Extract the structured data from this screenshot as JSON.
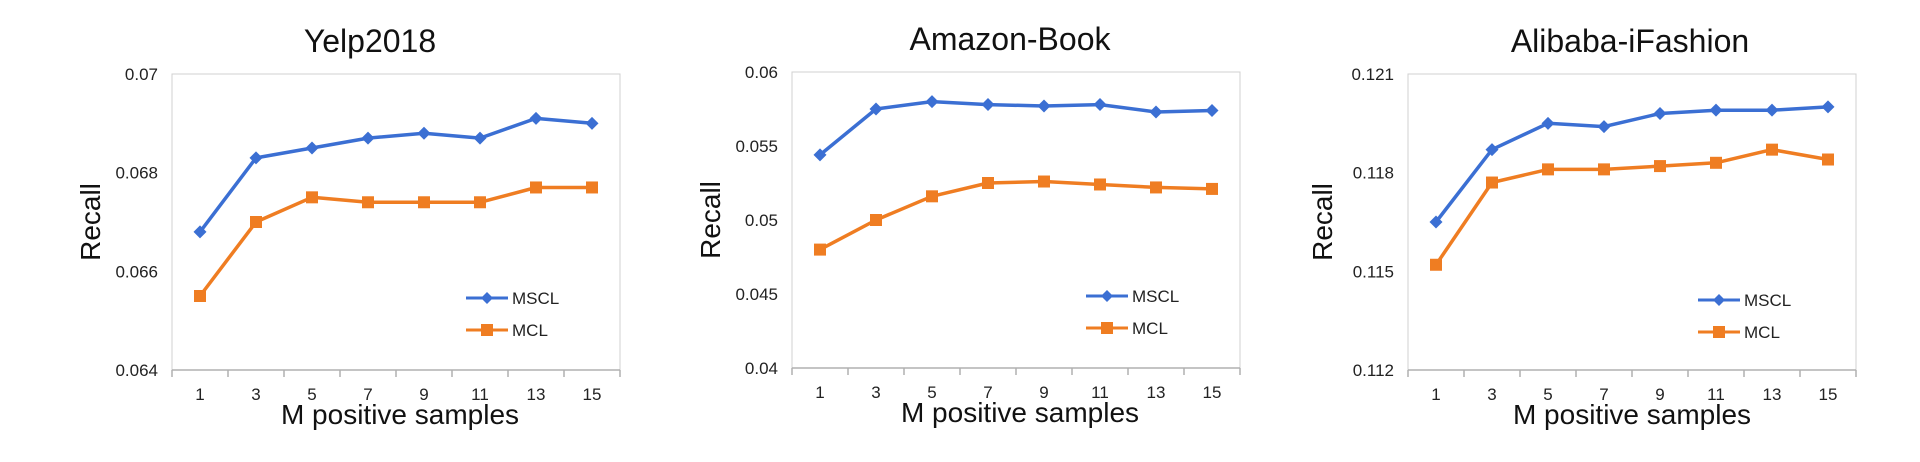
{
  "chart_data": [
    {
      "type": "line",
      "title": "Yelp2018",
      "xlabel": "M positive samples",
      "ylabel": "Recall",
      "categories": [
        "1",
        "3",
        "5",
        "7",
        "9",
        "11",
        "13",
        "15"
      ],
      "yticks": [
        "0.064",
        "0.066",
        "0.068",
        "0.07"
      ],
      "ylim": [
        0.064,
        0.07
      ],
      "grid": false,
      "legend_position": "bottom-right",
      "series": [
        {
          "name": "MSCL",
          "color": "#3b6fd3",
          "marker": "diamond",
          "values": [
            0.0668,
            0.0683,
            0.0685,
            0.0687,
            0.0688,
            0.0687,
            0.0691,
            0.069
          ]
        },
        {
          "name": "MCL",
          "color": "#ef7d22",
          "marker": "square",
          "values": [
            0.0655,
            0.067,
            0.0675,
            0.0674,
            0.0674,
            0.0674,
            0.0677,
            0.0677
          ]
        }
      ]
    },
    {
      "type": "line",
      "title": "Amazon-Book",
      "xlabel": "M positive samples",
      "ylabel": "Recall",
      "categories": [
        "1",
        "3",
        "5",
        "7",
        "9",
        "11",
        "13",
        "15"
      ],
      "yticks": [
        "0.04",
        "0.045",
        "0.05",
        "0.055",
        "0.06"
      ],
      "ylim": [
        0.04,
        0.06
      ],
      "grid": false,
      "legend_position": "bottom-right",
      "series": [
        {
          "name": "MSCL",
          "color": "#3b6fd3",
          "marker": "diamond",
          "values": [
            0.0544,
            0.0575,
            0.058,
            0.0578,
            0.0577,
            0.0578,
            0.0573,
            0.0574
          ]
        },
        {
          "name": "MCL",
          "color": "#ef7d22",
          "marker": "square",
          "values": [
            0.048,
            0.05,
            0.0516,
            0.0525,
            0.0526,
            0.0524,
            0.0522,
            0.0521
          ]
        }
      ]
    },
    {
      "type": "line",
      "title": "Alibaba-iFashion",
      "xlabel": "M positive samples",
      "ylabel": "Recall",
      "categories": [
        "1",
        "3",
        "5",
        "7",
        "9",
        "11",
        "13",
        "15"
      ],
      "yticks": [
        "0.112",
        "0.115",
        "0.118",
        "0.121"
      ],
      "ylim": [
        0.112,
        0.121
      ],
      "grid": false,
      "legend_position": "bottom-right",
      "series": [
        {
          "name": "MSCL",
          "color": "#3b6fd3",
          "marker": "diamond",
          "values": [
            0.1165,
            0.1187,
            0.1195,
            0.1194,
            0.1198,
            0.1199,
            0.1199,
            0.12
          ]
        },
        {
          "name": "MCL",
          "color": "#ef7d22",
          "marker": "square",
          "values": [
            0.1152,
            0.1177,
            0.1181,
            0.1181,
            0.1182,
            0.1183,
            0.1187,
            0.1184
          ]
        }
      ]
    }
  ]
}
